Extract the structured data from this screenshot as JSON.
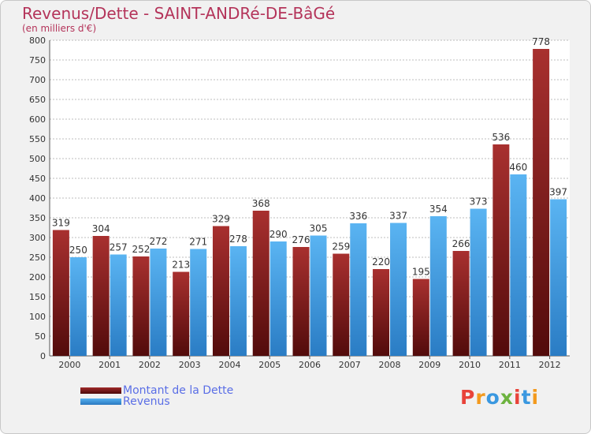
{
  "header": {
    "title": "Revenus/Dette - SAINT-ANDRé-DE-BâGé",
    "subtitle": "(en milliers d'€)"
  },
  "legend": [
    {
      "label": "Montant de la Dette",
      "color": "#7a1414"
    },
    {
      "label": "Revenus",
      "color": "#3a98e0"
    }
  ],
  "logo": {
    "text": "Proxiti",
    "colors": [
      "#e8433a",
      "#f39a1e",
      "#3a98e0",
      "#6db33f",
      "#e8433a",
      "#3a98e0",
      "#f39a1e"
    ]
  },
  "chart_data": {
    "type": "bar",
    "title": "Revenus/Dette - SAINT-ANDRé-DE-BâGé",
    "subtitle": "(en milliers d'€)",
    "categories": [
      "2000",
      "2001",
      "2002",
      "2003",
      "2004",
      "2005",
      "2006",
      "2007",
      "2008",
      "2009",
      "2010",
      "2011",
      "2012"
    ],
    "series": [
      {
        "name": "Montant de la Dette",
        "color": "#7a1414",
        "values": [
          319,
          304,
          252,
          213,
          329,
          368,
          276,
          259,
          220,
          195,
          266,
          536,
          778
        ]
      },
      {
        "name": "Revenus",
        "color": "#3a98e0",
        "values": [
          250,
          257,
          272,
          271,
          278,
          290,
          305,
          336,
          337,
          354,
          373,
          460,
          397
        ]
      }
    ],
    "y_ticks": [
      0,
      50,
      100,
      150,
      200,
      250,
      300,
      350,
      400,
      450,
      500,
      550,
      600,
      650,
      700,
      750,
      800
    ],
    "ylim": [
      0,
      800
    ],
    "grid": true,
    "legend_position": "bottom-left"
  }
}
